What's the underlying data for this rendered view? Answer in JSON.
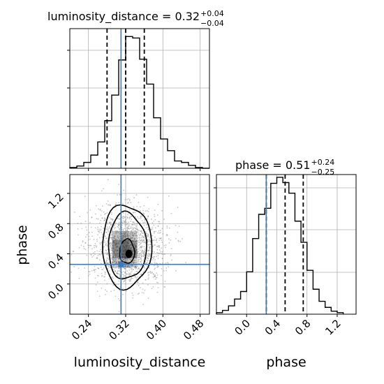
{
  "chart_data": {
    "type": "corner",
    "parameters": [
      "luminosity_distance",
      "phase"
    ],
    "axis_labels": {
      "x": [
        "luminosity_distance",
        "phase"
      ],
      "y": [
        "phase"
      ]
    },
    "titles": [
      {
        "param": "luminosity_distance",
        "text": "luminosity_distance = 0.32",
        "median": 0.32,
        "plus": "+0.04",
        "minus": "−0.04"
      },
      {
        "param": "phase",
        "text": "phase = 0.51",
        "median": 0.51,
        "plus": "+0.24",
        "minus": "−0.25"
      }
    ],
    "injection": {
      "luminosity_distance": 0.31,
      "phase": 0.26
    },
    "ticks": {
      "luminosity_distance": {
        "values": [
          0.24,
          0.32,
          0.4,
          0.48
        ],
        "labels": [
          "0.24",
          "0.32",
          "0.40",
          "0.48"
        ]
      },
      "phase": {
        "values": [
          0.0,
          0.4,
          0.8,
          1.2
        ],
        "labels": [
          "0.0",
          "0.4",
          "0.8",
          "1.2"
        ]
      }
    },
    "ranges": {
      "luminosity_distance": [
        0.2,
        0.5
      ],
      "phase": [
        -0.4,
        1.45
      ]
    },
    "histograms": {
      "luminosity_distance": {
        "edges": [
          0.2,
          0.215,
          0.23,
          0.245,
          0.26,
          0.275,
          0.29,
          0.305,
          0.32,
          0.335,
          0.35,
          0.365,
          0.38,
          0.395,
          0.41,
          0.425,
          0.44,
          0.455,
          0.47,
          0.485,
          0.5
        ],
        "counts": [
          1,
          3,
          8,
          18,
          36,
          65,
          100,
          148,
          180,
          178,
          149,
          115,
          69,
          40,
          24,
          10,
          8,
          4,
          1,
          0
        ],
        "quantiles": [
          0.28,
          0.32,
          0.36
        ]
      },
      "phase": {
        "edges": [
          -0.4,
          -0.32,
          -0.24,
          -0.16,
          -0.08,
          0.0,
          0.08,
          0.16,
          0.24,
          0.32,
          0.4,
          0.48,
          0.56,
          0.64,
          0.72,
          0.8,
          0.88,
          0.96,
          1.04,
          1.12,
          1.2,
          1.28
        ],
        "counts": [
          2,
          5,
          11,
          20,
          30,
          56,
          100,
          132,
          140,
          173,
          181,
          174,
          160,
          123,
          95,
          58,
          33,
          17,
          9,
          4,
          2
        ],
        "quantiles": [
          0.26,
          0.51,
          0.75
        ]
      }
    },
    "contours": [
      {
        "level": "inner",
        "center": [
          0.323,
          0.43
        ],
        "radius": [
          0.016,
          0.16
        ]
      },
      {
        "level": "middle",
        "center": [
          0.323,
          0.5
        ],
        "radius": [
          0.041,
          0.44
        ]
      },
      {
        "level": "outer",
        "center": [
          0.322,
          0.5
        ],
        "radius": [
          0.053,
          0.55
        ]
      }
    ],
    "grid": true,
    "colors": {
      "histogram": "#000000",
      "truth": "#3b7bbd",
      "points": "#888888",
      "grid": "#b0b0b0"
    }
  }
}
